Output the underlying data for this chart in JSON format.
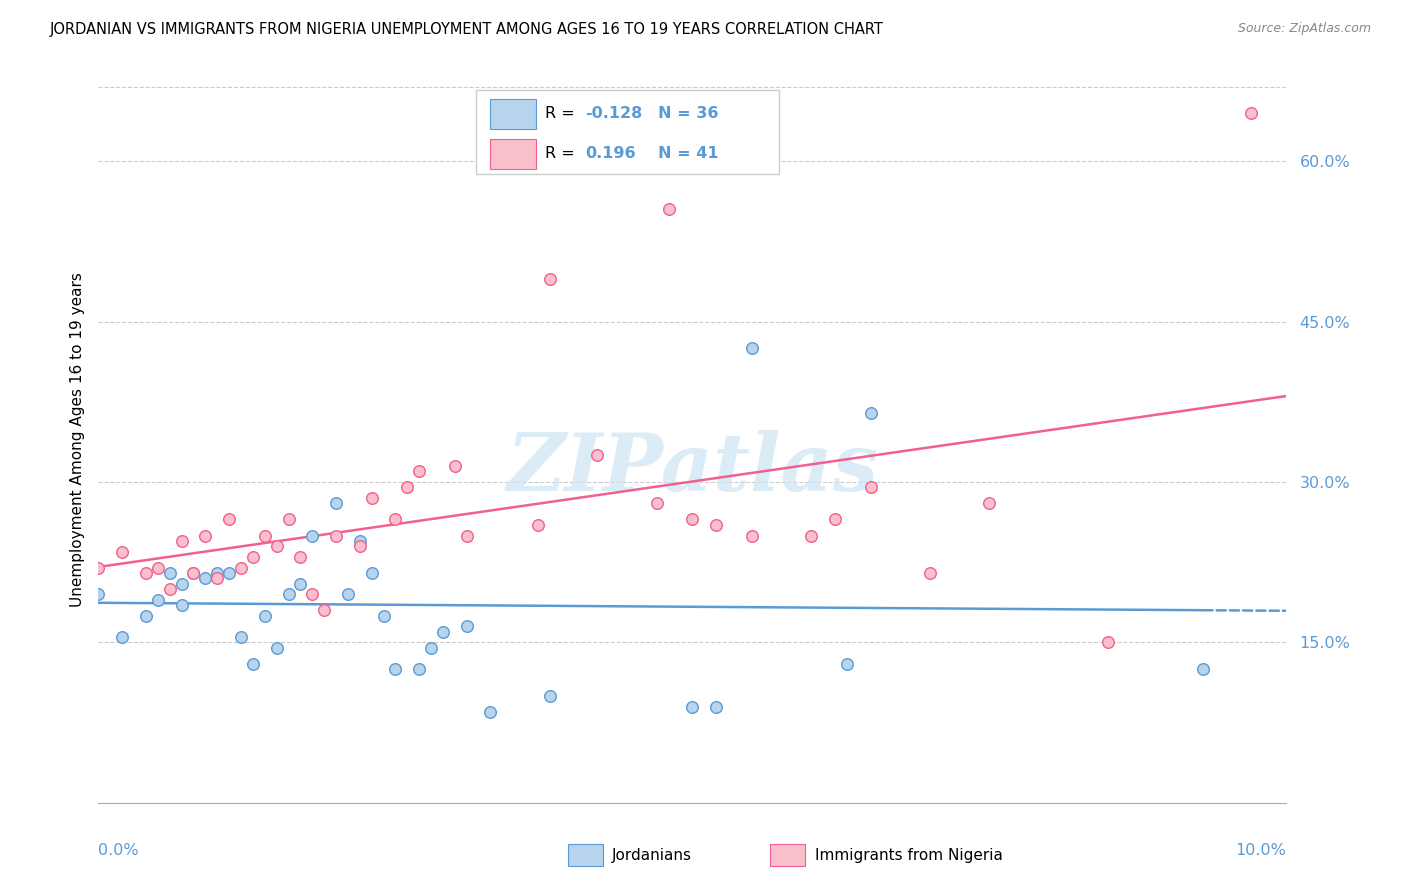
{
  "title": "JORDANIAN VS IMMIGRANTS FROM NIGERIA UNEMPLOYMENT AMONG AGES 16 TO 19 YEARS CORRELATION CHART",
  "source": "Source: ZipAtlas.com",
  "ylabel": "Unemployment Among Ages 16 to 19 years",
  "legend1_label": "Jordanians",
  "legend2_label": "Immigrants from Nigeria",
  "R1": -0.128,
  "N1": 36,
  "R2": 0.196,
  "N2": 41,
  "blue_fill": "#b8d4ed",
  "pink_fill": "#f9c0cc",
  "blue_edge": "#5b9bd5",
  "pink_edge": "#f06090",
  "blue_line": "#5b9bd5",
  "pink_line": "#f06090",
  "jordanians_x": [
    0.0,
    0.002,
    0.004,
    0.005,
    0.006,
    0.007,
    0.007,
    0.008,
    0.009,
    0.01,
    0.011,
    0.012,
    0.013,
    0.014,
    0.015,
    0.016,
    0.017,
    0.018,
    0.02,
    0.021,
    0.022,
    0.023,
    0.024,
    0.025,
    0.027,
    0.028,
    0.029,
    0.031,
    0.033,
    0.038,
    0.05,
    0.052,
    0.055,
    0.063,
    0.065,
    0.093
  ],
  "jordanians_y": [
    0.195,
    0.155,
    0.175,
    0.19,
    0.215,
    0.205,
    0.185,
    0.215,
    0.21,
    0.215,
    0.215,
    0.155,
    0.13,
    0.175,
    0.145,
    0.195,
    0.205,
    0.25,
    0.28,
    0.195,
    0.245,
    0.215,
    0.175,
    0.125,
    0.125,
    0.145,
    0.16,
    0.165,
    0.085,
    0.1,
    0.09,
    0.09,
    0.425,
    0.13,
    0.365,
    0.125
  ],
  "nigeria_x": [
    0.0,
    0.002,
    0.004,
    0.005,
    0.006,
    0.007,
    0.008,
    0.009,
    0.01,
    0.011,
    0.012,
    0.013,
    0.014,
    0.015,
    0.016,
    0.017,
    0.018,
    0.019,
    0.02,
    0.022,
    0.023,
    0.025,
    0.026,
    0.027,
    0.03,
    0.031,
    0.037,
    0.038,
    0.042,
    0.047,
    0.048,
    0.05,
    0.052,
    0.055,
    0.06,
    0.062,
    0.065,
    0.07,
    0.075,
    0.085,
    0.097
  ],
  "nigeria_y": [
    0.22,
    0.235,
    0.215,
    0.22,
    0.2,
    0.245,
    0.215,
    0.25,
    0.21,
    0.265,
    0.22,
    0.23,
    0.25,
    0.24,
    0.265,
    0.23,
    0.195,
    0.18,
    0.25,
    0.24,
    0.285,
    0.265,
    0.295,
    0.31,
    0.315,
    0.25,
    0.26,
    0.49,
    0.325,
    0.28,
    0.555,
    0.265,
    0.26,
    0.25,
    0.25,
    0.265,
    0.295,
    0.215,
    0.28,
    0.15,
    0.645
  ],
  "xmin": 0.0,
  "xmax": 0.1,
  "ymin": 0.0,
  "ymax": 0.68,
  "ytick_vals": [
    0.15,
    0.3,
    0.45,
    0.6
  ],
  "ytick_labels": [
    "15.0%",
    "30.0%",
    "45.0%",
    "60.0%"
  ],
  "grid_color": "#cccccc",
  "watermark_text": "ZIPatlas",
  "watermark_color": "#cde4f5"
}
